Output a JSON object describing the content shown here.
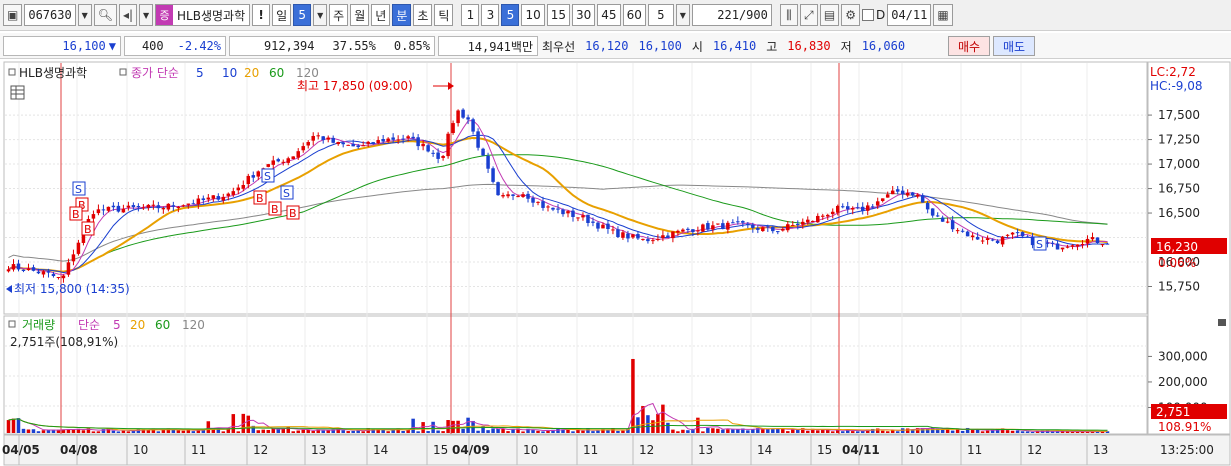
{
  "toolbar": {
    "code": "067630",
    "name_badge": "증",
    "stock_name": "HLB생명과학",
    "alert_label": "!",
    "periods": [
      "일",
      "5",
      "주",
      "월",
      "년",
      "분",
      "초",
      "틱"
    ],
    "minute_steps": [
      "1",
      "3",
      "5",
      "10",
      "15",
      "30",
      "45",
      "60"
    ],
    "selected_step": "5",
    "interval_value": "5",
    "count_value": "221",
    "count_max": "/900",
    "d_label": "D",
    "date_value": "04/11"
  },
  "quote": {
    "price": "16,100",
    "change_arrow": "▼",
    "change": "400",
    "change_pct": "-2.42%",
    "volume": "912,394",
    "turnover_rate": "37.55%",
    "ratio": "0.85%",
    "amount": "14,941백만",
    "best_label": "최우선",
    "best_ask": "16,120",
    "best_bid": "16,100",
    "open_label": "시",
    "open": "16,410",
    "high_label": "고",
    "high": "16,830",
    "low_label": "저",
    "low": "16,060",
    "buy_label": "매수",
    "sell_label": "매도"
  },
  "price_panel": {
    "legend_name": "HLB생명과학",
    "legend_price": "종가 단순",
    "ma_periods": [
      "5",
      "10",
      "20",
      "60",
      "120"
    ],
    "ma_colors": [
      "#1a3fd0",
      "#1a3fd0",
      "#e8a000",
      "#1a9a1a",
      "#888888"
    ],
    "lc_label": "LC:2,72",
    "hc_label": "HC:-9,08",
    "high_annotation": "최고 17,850 (09:00)",
    "low_annotation": "최저 15,800 (14:35)",
    "current_price_tag": "16,230",
    "current_pct_tag": "0.06%",
    "y_ticks": [
      "17,500",
      "17,250",
      "17,000",
      "16,750",
      "16,500",
      "15,750"
    ],
    "partial_tick": "16,000"
  },
  "volume_panel": {
    "legend_name": "거래량",
    "legend_ma": "단순",
    "ma_periods": [
      "5",
      "20",
      "60",
      "120"
    ],
    "value_text": "2,751주(108,91%)",
    "y_ticks": [
      "300,000",
      "200,000",
      "100,000"
    ],
    "current_tag": "2,751",
    "pct_tag": "108.91%"
  },
  "x_axis": {
    "labels": [
      "04/05",
      "04/08",
      "10",
      "11",
      "12",
      "13",
      "14",
      "15",
      "04/09",
      "10",
      "11",
      "12",
      "13",
      "14",
      "15",
      "04/11",
      "10",
      "11",
      "12",
      "13"
    ],
    "time": "13:25:00"
  },
  "colors": {
    "up": "#e00000",
    "down": "#1a3fd0",
    "ma5": "#1a3fd0",
    "ma20": "#e8a000",
    "ma60": "#1a9a1a",
    "ma120": "#888888",
    "selected": "#3a6fd8"
  }
}
